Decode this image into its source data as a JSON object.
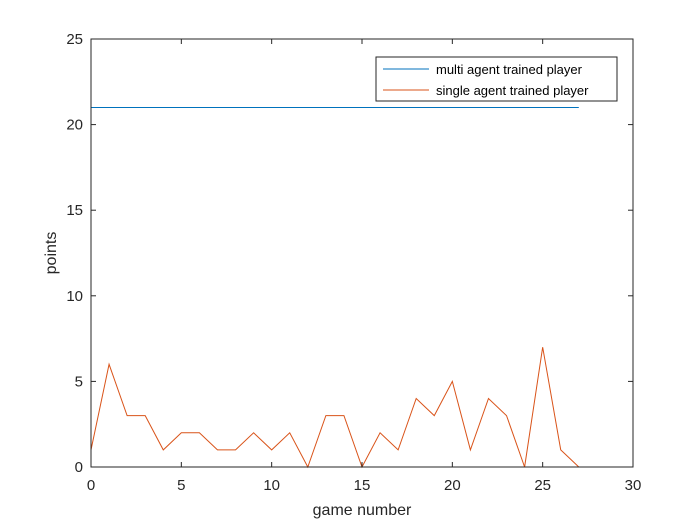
{
  "chart_data": {
    "type": "line",
    "xlabel": "game number",
    "ylabel": "points",
    "xlim": [
      0,
      30
    ],
    "ylim": [
      0,
      25
    ],
    "xticks": [
      0,
      5,
      10,
      15,
      20,
      25,
      30
    ],
    "yticks": [
      0,
      5,
      10,
      15,
      20,
      25
    ],
    "xtick_labels": [
      "0",
      "5",
      "10",
      "15",
      "20",
      "25",
      "30"
    ],
    "ytick_labels": [
      "0",
      "5",
      "10",
      "15",
      "20",
      "25"
    ],
    "grid": false,
    "legend_position": "top-right",
    "x": [
      0,
      1,
      2,
      3,
      4,
      5,
      6,
      7,
      8,
      9,
      10,
      11,
      12,
      13,
      14,
      15,
      16,
      17,
      18,
      19,
      20,
      21,
      22,
      23,
      24,
      25,
      26,
      27
    ],
    "series": [
      {
        "name": "multi agent trained player",
        "color": "#0072BD",
        "values": [
          21,
          21,
          21,
          21,
          21,
          21,
          21,
          21,
          21,
          21,
          21,
          21,
          21,
          21,
          21,
          21,
          21,
          21,
          21,
          21,
          21,
          21,
          21,
          21,
          21,
          21,
          21,
          21
        ]
      },
      {
        "name": "single agent trained player",
        "color": "#D95319",
        "values": [
          1,
          6,
          3,
          3,
          1,
          2,
          2,
          1,
          1,
          2,
          1,
          2,
          0,
          3,
          3,
          0,
          2,
          1,
          4,
          3,
          5,
          1,
          4,
          3,
          0,
          7,
          1,
          0
        ]
      }
    ]
  }
}
